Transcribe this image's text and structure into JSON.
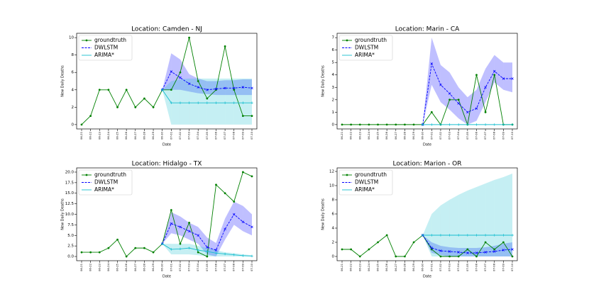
{
  "chart_data": [
    {
      "type": "line",
      "title": "Location: Camden - NJ",
      "xlabel": "Date",
      "ylabel": "New Daily Deaths",
      "categories": [
        "06-21",
        "06-22",
        "06-23",
        "06-24",
        "06-25",
        "06-26",
        "06-27",
        "06-28",
        "06-29",
        "06-30",
        "07-01",
        "07-02",
        "07-03",
        "07-04",
        "07-05",
        "07-06",
        "07-07",
        "07-08",
        "07-09",
        "07-10"
      ],
      "ylim": [
        -0.5,
        10.5
      ],
      "yticks": [
        0,
        2,
        4,
        6,
        8,
        10
      ],
      "legend": "upper left",
      "series": [
        {
          "name": "groundtruth",
          "color": "#008000",
          "marker": "o",
          "values": [
            0,
            1,
            4,
            4,
            2,
            4,
            2,
            3,
            2,
            4,
            4,
            6,
            10,
            5,
            3,
            4,
            9,
            4,
            1,
            1
          ]
        },
        {
          "name": "DWLSTM",
          "color": "#0000ff",
          "marker": "x",
          "values": [
            null,
            null,
            null,
            null,
            null,
            null,
            null,
            null,
            null,
            4,
            6.1,
            5.4,
            4.7,
            4.3,
            4.0,
            4.1,
            4.2,
            4.2,
            4.3,
            4.2
          ],
          "lower": [
            null,
            null,
            null,
            null,
            null,
            null,
            null,
            null,
            null,
            4,
            4,
            4,
            3.8,
            3.6,
            3.5,
            3.4,
            3.4,
            3.4,
            3.4,
            3.4
          ],
          "upper": [
            null,
            null,
            null,
            null,
            null,
            null,
            null,
            null,
            null,
            4,
            8.2,
            7.5,
            5.8,
            5.3,
            5.0,
            5.0,
            5.1,
            5.1,
            5.2,
            5.2
          ]
        },
        {
          "name": "ARIMA*",
          "color": "#17becf",
          "marker": "+",
          "values": [
            null,
            null,
            null,
            null,
            null,
            null,
            null,
            null,
            null,
            4,
            2.5,
            2.5,
            2.5,
            2.5,
            2.5,
            2.5,
            2.5,
            2.5,
            2.5,
            2.5
          ],
          "lower": [
            null,
            null,
            null,
            null,
            null,
            null,
            null,
            null,
            null,
            4,
            0,
            0,
            0,
            0,
            0,
            0,
            0,
            0,
            0,
            0
          ],
          "upper": [
            null,
            null,
            null,
            null,
            null,
            null,
            null,
            null,
            null,
            4,
            5.0,
            5.2,
            5.3,
            5.3,
            5.3,
            5.3,
            5.3,
            5.3,
            5.3,
            5.3
          ]
        }
      ]
    },
    {
      "type": "line",
      "title": "Location: Marin - CA",
      "xlabel": "Date",
      "ylabel": "New Daily Deaths",
      "categories": [
        "06-21",
        "06-22",
        "06-23",
        "06-24",
        "06-25",
        "06-26",
        "06-27",
        "06-28",
        "06-29",
        "06-30",
        "07-01",
        "07-02",
        "07-03",
        "07-04",
        "07-05",
        "07-06",
        "07-07",
        "07-08",
        "07-09",
        "07-10"
      ],
      "ylim": [
        -0.35,
        7.35
      ],
      "yticks": [
        0,
        1,
        2,
        3,
        4,
        5,
        6,
        7
      ],
      "legend": "upper left",
      "series": [
        {
          "name": "groundtruth",
          "color": "#008000",
          "marker": "o",
          "values": [
            0,
            0,
            0,
            0,
            0,
            0,
            0,
            0,
            0,
            0,
            1,
            0,
            2,
            2,
            0,
            4,
            1,
            4,
            0,
            0
          ]
        },
        {
          "name": "DWLSTM",
          "color": "#0000ff",
          "marker": "x",
          "values": [
            null,
            null,
            null,
            null,
            null,
            null,
            null,
            null,
            null,
            0,
            4.9,
            3.2,
            2.5,
            1.7,
            1.0,
            1.3,
            3.0,
            4.3,
            3.7,
            3.7
          ],
          "lower": [
            null,
            null,
            null,
            null,
            null,
            null,
            null,
            null,
            null,
            0,
            3.2,
            1.8,
            1.2,
            0.5,
            0,
            0.3,
            1.8,
            3.4,
            2.8,
            2.6
          ],
          "upper": [
            null,
            null,
            null,
            null,
            null,
            null,
            null,
            null,
            null,
            0,
            7.0,
            4.8,
            4.2,
            3.0,
            2.2,
            2.8,
            4.5,
            5.6,
            5.0,
            5.0
          ]
        },
        {
          "name": "ARIMA*",
          "color": "#17becf",
          "marker": "+",
          "values": [
            null,
            null,
            null,
            null,
            null,
            null,
            null,
            null,
            null,
            0,
            0,
            0,
            0,
            0,
            0,
            0,
            0,
            0,
            0,
            0
          ]
        }
      ]
    },
    {
      "type": "line",
      "title": "Location: Hidalgo - TX",
      "xlabel": "Date",
      "ylabel": "New Daily Deaths",
      "categories": [
        "06-21",
        "06-22",
        "06-23",
        "06-24",
        "06-25",
        "06-26",
        "06-27",
        "06-28",
        "06-29",
        "06-30",
        "07-01",
        "07-02",
        "07-03",
        "07-04",
        "07-05",
        "07-06",
        "07-07",
        "07-08",
        "07-09",
        "07-10"
      ],
      "ylim": [
        -1,
        21
      ],
      "yticks": [
        {
          "value": 0,
          "label": "0.0"
        },
        {
          "value": 2.5,
          "label": "2.5"
        },
        {
          "value": 5,
          "label": "5.0"
        },
        {
          "value": 7.5,
          "label": "7.5"
        },
        {
          "value": 10,
          "label": "10.0"
        },
        {
          "value": 12.5,
          "label": "12.5"
        },
        {
          "value": 15,
          "label": "15.0"
        },
        {
          "value": 17.5,
          "label": "17.5"
        },
        {
          "value": 20,
          "label": "20.0"
        }
      ],
      "legend": "upper left",
      "series": [
        {
          "name": "groundtruth",
          "color": "#008000",
          "marker": "o",
          "values": [
            1,
            1,
            1,
            2,
            4,
            0,
            2,
            2,
            1,
            3,
            11,
            3,
            8,
            1,
            0,
            17,
            15,
            13,
            20,
            19
          ]
        },
        {
          "name": "DWLSTM",
          "color": "#0000ff",
          "marker": "x",
          "values": [
            null,
            null,
            null,
            null,
            null,
            null,
            null,
            null,
            null,
            3,
            7.8,
            7,
            6,
            5,
            2.2,
            1.5,
            6.5,
            10,
            8.2,
            7
          ],
          "lower": [
            null,
            null,
            null,
            null,
            null,
            null,
            null,
            null,
            null,
            3,
            5.5,
            5,
            4,
            3,
            0.5,
            0,
            4,
            7.5,
            6,
            5
          ],
          "upper": [
            null,
            null,
            null,
            null,
            null,
            null,
            null,
            null,
            null,
            3,
            10.5,
            9.5,
            8,
            7,
            4.5,
            3.2,
            9,
            13,
            12,
            10
          ]
        },
        {
          "name": "ARIMA*",
          "color": "#17becf",
          "marker": "+",
          "values": [
            null,
            null,
            null,
            null,
            null,
            null,
            null,
            null,
            null,
            3,
            1.7,
            1.8,
            2,
            1.5,
            1.2,
            0.8,
            0.6,
            0.4,
            0.2,
            0.1
          ],
          "lower": [
            null,
            null,
            null,
            null,
            null,
            null,
            null,
            null,
            null,
            3,
            0.5,
            0.5,
            0.5,
            0.3,
            0,
            0,
            0,
            0,
            0,
            0
          ],
          "upper": [
            null,
            null,
            null,
            null,
            null,
            null,
            null,
            null,
            null,
            3,
            3,
            3,
            3,
            2.5,
            2,
            1.5,
            1,
            0.8,
            0.5,
            0.3
          ]
        }
      ]
    },
    {
      "type": "line",
      "title": "Location: Marion - OR",
      "xlabel": "Date",
      "ylabel": "New Daily Deaths",
      "categories": [
        "06-21",
        "06-22",
        "06-23",
        "06-24",
        "06-25",
        "06-26",
        "06-27",
        "06-28",
        "06-29",
        "06-30",
        "07-01",
        "07-02",
        "07-03",
        "07-04",
        "07-05",
        "07-06",
        "07-07",
        "07-08",
        "07-09",
        "07-10"
      ],
      "ylim": [
        -0.6,
        12.5
      ],
      "yticks": [
        0,
        2,
        4,
        6,
        8,
        10,
        12
      ],
      "legend": "upper left",
      "series": [
        {
          "name": "groundtruth",
          "color": "#008000",
          "marker": "o",
          "values": [
            1,
            1,
            0,
            1,
            2,
            3,
            0,
            0,
            2,
            3,
            1,
            0,
            0,
            0,
            1,
            0,
            2,
            1,
            2,
            0
          ]
        },
        {
          "name": "DWLSTM",
          "color": "#0000ff",
          "marker": "x",
          "values": [
            null,
            null,
            null,
            null,
            null,
            null,
            null,
            null,
            null,
            3,
            1.2,
            0.8,
            0.7,
            0.6,
            0.5,
            0.5,
            0.6,
            0.7,
            0.9,
            1.0
          ],
          "lower": [
            null,
            null,
            null,
            null,
            null,
            null,
            null,
            null,
            null,
            3,
            0.5,
            0.2,
            0,
            0,
            0,
            0,
            0,
            0,
            0,
            0
          ],
          "upper": [
            null,
            null,
            null,
            null,
            null,
            null,
            null,
            null,
            null,
            3,
            2,
            1.5,
            1.3,
            1.2,
            1.2,
            1.2,
            1.3,
            1.5,
            1.8,
            2
          ]
        },
        {
          "name": "ARIMA*",
          "color": "#17becf",
          "marker": "+",
          "values": [
            null,
            null,
            null,
            null,
            null,
            null,
            null,
            null,
            null,
            3,
            3,
            3,
            3,
            3,
            3,
            3,
            3,
            3,
            3,
            3
          ],
          "lower": [
            null,
            null,
            null,
            null,
            null,
            null,
            null,
            null,
            null,
            3,
            0,
            0,
            0,
            0,
            0,
            0,
            0,
            0,
            0,
            0
          ],
          "upper": [
            null,
            null,
            null,
            null,
            null,
            null,
            null,
            null,
            null,
            3,
            6,
            7.2,
            8,
            8.7,
            9.3,
            9.8,
            10.3,
            10.8,
            11.2,
            11.7
          ]
        }
      ]
    }
  ]
}
